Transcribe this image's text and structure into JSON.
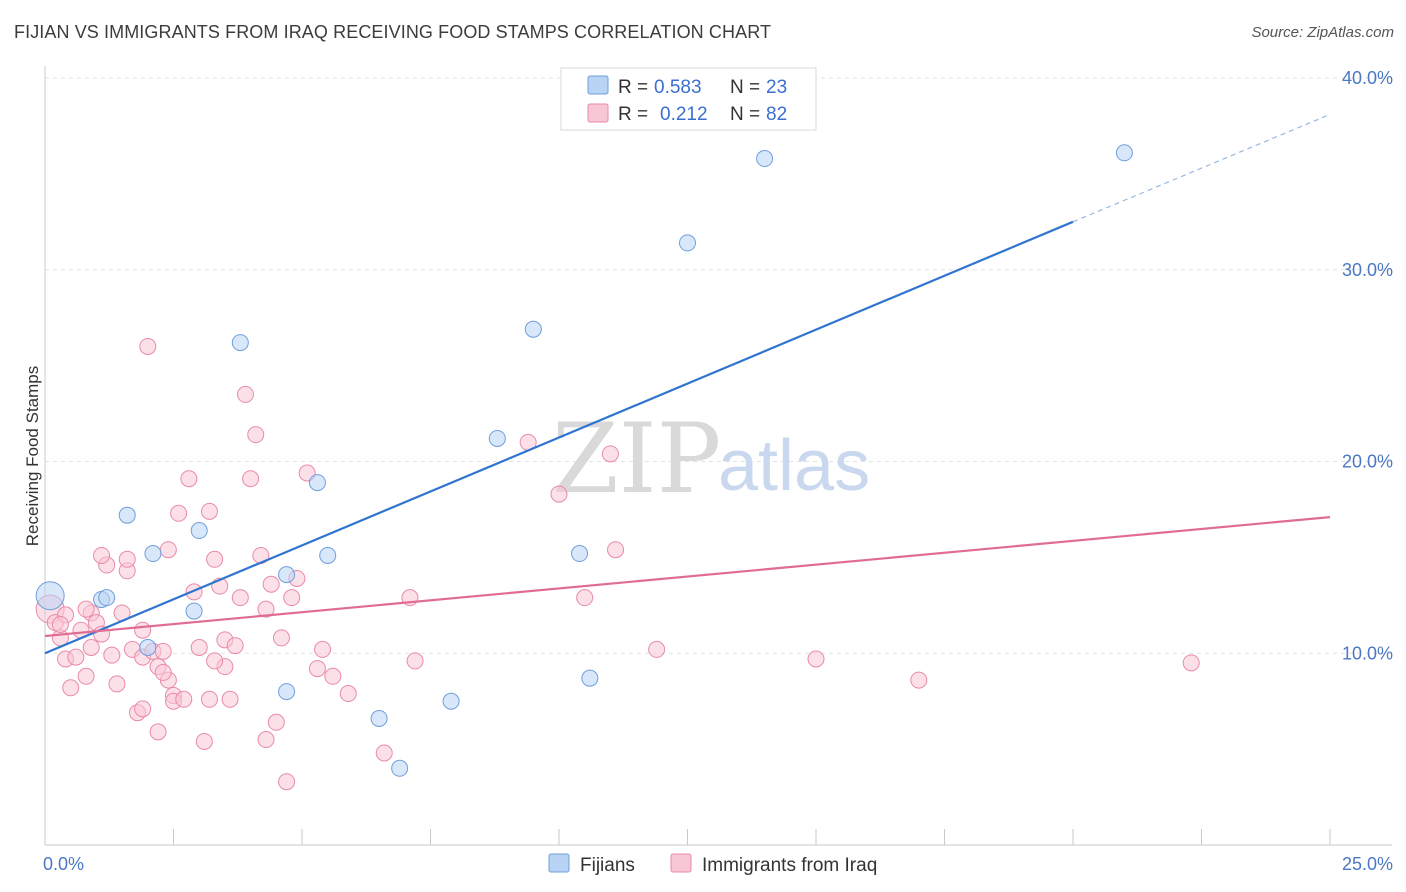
{
  "header": {
    "title": "FIJIAN VS IMMIGRANTS FROM IRAQ RECEIVING FOOD STAMPS CORRELATION CHART",
    "source": "Source: ZipAtlas.com"
  },
  "watermark": {
    "zip": "ZIP",
    "atlas": "atlas"
  },
  "colors": {
    "fijian_fill": "#b9d3f5",
    "fijian_stroke": "#6f9fdc",
    "fijian_line": "#2f75d0",
    "iraq_fill": "#f9c6d5",
    "iraq_stroke": "#e98aa9",
    "iraq_line": "#e06c94"
  },
  "legend": {
    "rows": [
      {
        "r_label": "R =",
        "r_value": "0.583",
        "n_label": "N =",
        "n_value": "23"
      },
      {
        "r_label": "R =",
        "r_value": "0.212",
        "n_label": "N =",
        "n_value": "82"
      }
    ]
  },
  "chart_data": {
    "type": "scatter",
    "title": "FIJIAN VS IMMIGRANTS FROM IRAQ RECEIVING FOOD STAMPS CORRELATION CHART",
    "xlabel": "",
    "ylabel": "Receiving Food Stamps",
    "xlim": [
      0,
      25
    ],
    "ylim": [
      0,
      40
    ],
    "x_tick_labels": [
      "0.0%",
      "25.0%"
    ],
    "y_ticks": [
      10,
      20,
      30,
      40
    ],
    "y_tick_labels": [
      "10.0%",
      "20.0%",
      "30.0%",
      "40.0%"
    ],
    "grid": true,
    "legend_position": "top-center",
    "series": [
      {
        "name": "Fijians",
        "x": [
          0.1,
          1.6,
          2.1,
          1.1,
          3.0,
          3.8,
          2.9,
          4.7,
          5.3,
          6.9,
          5.5,
          4.7,
          2.0,
          8.8,
          9.5,
          10.6,
          12.5,
          14.0,
          21.0,
          6.5,
          7.9,
          10.4,
          1.2
        ],
        "y": [
          13.0,
          17.2,
          15.2,
          12.8,
          16.4,
          26.2,
          12.2,
          8.0,
          18.9,
          4.0,
          15.1,
          14.1,
          10.3,
          21.2,
          26.9,
          8.7,
          31.4,
          35.8,
          36.1,
          6.6,
          7.5,
          15.2,
          12.9
        ],
        "sizes": [
          14,
          8,
          8,
          8,
          8,
          8,
          8,
          8,
          8,
          8,
          8,
          8,
          8,
          8,
          8,
          8,
          8,
          8,
          8,
          8,
          8,
          8,
          8
        ]
      },
      {
        "name": "Immigrants from Iraq",
        "x": [
          0.1,
          0.2,
          0.3,
          0.4,
          0.4,
          0.5,
          0.6,
          0.7,
          0.8,
          0.9,
          0.9,
          1.0,
          1.1,
          1.2,
          1.3,
          1.4,
          1.5,
          1.6,
          1.6,
          1.7,
          1.8,
          1.9,
          1.9,
          2.0,
          2.1,
          2.2,
          2.2,
          2.3,
          2.4,
          2.4,
          2.5,
          2.5,
          2.6,
          2.7,
          2.8,
          2.9,
          3.0,
          3.1,
          3.2,
          3.2,
          3.3,
          3.4,
          3.5,
          3.5,
          3.6,
          3.7,
          3.8,
          3.9,
          4.0,
          4.1,
          4.2,
          4.3,
          4.3,
          4.4,
          4.5,
          4.6,
          4.7,
          4.8,
          4.9,
          5.1,
          5.3,
          5.4,
          5.6,
          5.9,
          6.6,
          7.1,
          7.2,
          9.4,
          10.0,
          10.5,
          11.0,
          11.1,
          11.9,
          15.0,
          17.0,
          22.3,
          0.3,
          0.8,
          1.1,
          1.9,
          3.3,
          2.3
        ],
        "y": [
          12.3,
          11.6,
          10.8,
          9.7,
          12.0,
          8.2,
          9.8,
          11.2,
          8.8,
          10.3,
          12.1,
          11.6,
          11.0,
          14.6,
          9.9,
          8.4,
          12.1,
          14.3,
          14.9,
          10.2,
          6.9,
          7.1,
          9.8,
          26.0,
          10.1,
          5.9,
          9.3,
          10.1,
          8.6,
          15.4,
          7.8,
          7.5,
          17.3,
          7.6,
          19.1,
          13.2,
          10.3,
          5.4,
          7.6,
          17.4,
          14.9,
          13.5,
          9.3,
          10.7,
          7.6,
          10.4,
          12.9,
          23.5,
          19.1,
          21.4,
          15.1,
          12.3,
          5.5,
          13.6,
          6.4,
          10.8,
          3.3,
          12.9,
          13.9,
          19.4,
          9.2,
          10.2,
          8.8,
          7.9,
          4.8,
          12.9,
          9.6,
          21.0,
          18.3,
          12.9,
          20.4,
          15.4,
          10.2,
          9.7,
          8.6,
          9.5,
          11.5,
          12.3,
          15.1,
          11.2,
          9.6,
          9.0
        ],
        "sizes": [
          14,
          8,
          8,
          8,
          8,
          8,
          8,
          8,
          8,
          8,
          8,
          8,
          8,
          8,
          8,
          8,
          8,
          8,
          8,
          8,
          8,
          8,
          8,
          8,
          8,
          8,
          8,
          8,
          8,
          8,
          8,
          8,
          8,
          8,
          8,
          8,
          8,
          8,
          8,
          8,
          8,
          8,
          8,
          8,
          8,
          8,
          8,
          8,
          8,
          8,
          8,
          8,
          8,
          8,
          8,
          8,
          8,
          8,
          8,
          8,
          8,
          8,
          8,
          8,
          8,
          8,
          8,
          8,
          8,
          8,
          8,
          8,
          8,
          8,
          8,
          8,
          8,
          8,
          8,
          8,
          8,
          8
        ]
      }
    ],
    "trendlines": [
      {
        "series": "Fijians",
        "x_start": 0,
        "y_start": 10.0,
        "x_end": 20.0,
        "y_end": 32.5,
        "dashed_to_x": 25,
        "dashed_to_y": 38.1
      },
      {
        "series": "Immigrants from Iraq",
        "x_start": 0,
        "y_start": 10.9,
        "x_end": 25,
        "y_end": 17.1
      }
    ]
  }
}
